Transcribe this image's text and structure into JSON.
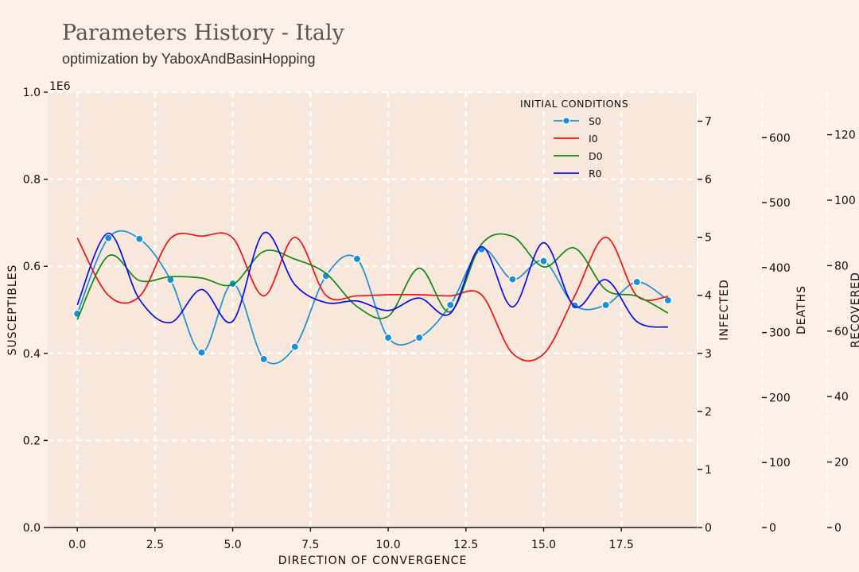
{
  "title": "Parameters History - Italy",
  "subtitle": "optimization by YaboxAndBasinHopping",
  "chart_data": {
    "type": "line",
    "x": [
      0,
      1,
      2,
      3,
      4,
      5,
      6,
      7,
      8,
      9,
      10,
      11,
      12,
      13,
      14,
      15,
      16,
      17,
      18,
      19
    ],
    "xlabel": "DIRECTION OF CONVERGENCE",
    "xlim": [
      -0.95,
      19.95
    ],
    "x_ticks": [
      "0.0",
      "2.5",
      "5.0",
      "7.5",
      "10.0",
      "12.5",
      "15.0",
      "17.5"
    ],
    "x_tick_values": [
      0,
      2.5,
      5,
      7.5,
      10,
      12.5,
      15,
      17.5
    ],
    "grid": true,
    "legend": {
      "title": "INITIAL CONDITIONS",
      "placement": "upper-right",
      "entries": [
        "S0",
        "I0",
        "D0",
        "R0"
      ]
    },
    "axes": {
      "susceptibles": {
        "label": "SUSCEPTIBLES",
        "multiplier": "1E6",
        "ylim": [
          0,
          1000000
        ],
        "ticks": [
          "0.0",
          "0.2",
          "0.4",
          "0.6",
          "0.8",
          "1.0"
        ],
        "tick_values": [
          0,
          200000,
          400000,
          600000,
          800000,
          1000000
        ]
      },
      "infected": {
        "label": "INFECTED",
        "ylim": [
          0,
          7.5
        ],
        "ticks": [
          "0",
          "1",
          "2",
          "3",
          "4",
          "5",
          "6",
          "7"
        ],
        "tick_values": [
          0,
          1,
          2,
          3,
          4,
          5,
          6,
          7
        ]
      },
      "deaths": {
        "label": "DEATHS",
        "ylim": [
          0,
          670
        ],
        "ticks": [
          "0",
          "100",
          "200",
          "300",
          "400",
          "500",
          "600"
        ],
        "tick_values": [
          0,
          100,
          200,
          300,
          400,
          500,
          600
        ]
      },
      "recovered": {
        "label": "RECOVERED",
        "ylim": [
          0,
          133
        ],
        "ticks": [
          "0",
          "20",
          "40",
          "60",
          "80",
          "100",
          "120"
        ],
        "tick_values": [
          0,
          20,
          40,
          60,
          80,
          100,
          120
        ]
      }
    },
    "series": [
      {
        "name": "S0",
        "axis": "susceptibles",
        "color": "#1a8fd6",
        "markers": true,
        "values": [
          491000,
          665000,
          663000,
          569000,
          402000,
          560000,
          387000,
          415000,
          578000,
          617000,
          436000,
          436000,
          511000,
          639000,
          570000,
          612000,
          510000,
          511000,
          564000,
          522000
        ]
      },
      {
        "name": "I0",
        "axis": "infected",
        "color": "#ee1111",
        "markers": false,
        "values": [
          4.99,
          4.0,
          3.98,
          4.98,
          5.02,
          4.99,
          3.99,
          5.0,
          4.0,
          3.99,
          4.01,
          4.01,
          3.99,
          4.01,
          3.0,
          2.99,
          3.99,
          5.0,
          3.99,
          3.98
        ]
      },
      {
        "name": "D0",
        "axis": "deaths",
        "color": "#118811",
        "markers": false,
        "values": [
          320,
          418,
          380,
          386,
          384,
          374,
          425,
          413,
          391,
          340,
          325,
          399,
          332,
          436,
          448,
          401,
          430,
          366,
          356,
          330
        ]
      },
      {
        "name": "R0",
        "axis": "recovered",
        "color": "#0a0aee",
        "markers": false,
        "values": [
          68.0,
          89.9,
          69.7,
          62.6,
          72.7,
          63.0,
          90.0,
          74.2,
          68.7,
          69.2,
          66.3,
          70.1,
          65.4,
          85.8,
          67.4,
          87.0,
          67.5,
          75.7,
          62.9,
          61.2
        ]
      }
    ]
  }
}
